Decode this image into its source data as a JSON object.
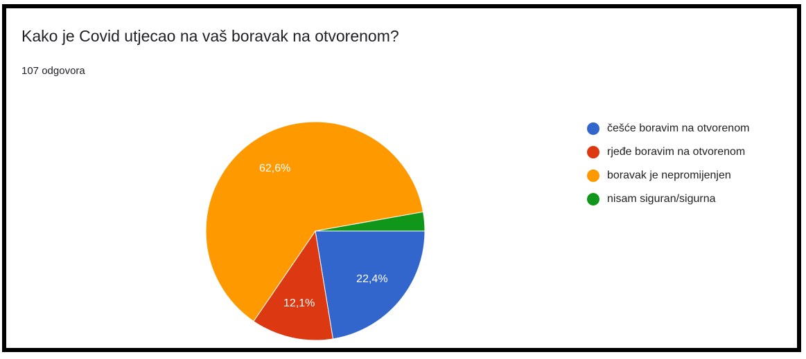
{
  "chart_data": {
    "type": "pie",
    "title": "Kako je Covid utjecao na vaš boravak na otvorenom?",
    "subtitle": "107 odgovora",
    "categories": [
      "češće boravim na otvorenom",
      "rjeđe boravim na otvorenom",
      "boravak je nepromijenjen",
      "nisam siguran/sigurna"
    ],
    "values": [
      22.4,
      12.1,
      62.6,
      2.8
    ],
    "value_labels": [
      "22,4%",
      "12,1%",
      "62,6%",
      null
    ],
    "colors": [
      "#3366cc",
      "#dc3912",
      "#ff9900",
      "#109618"
    ],
    "legend": "right"
  }
}
